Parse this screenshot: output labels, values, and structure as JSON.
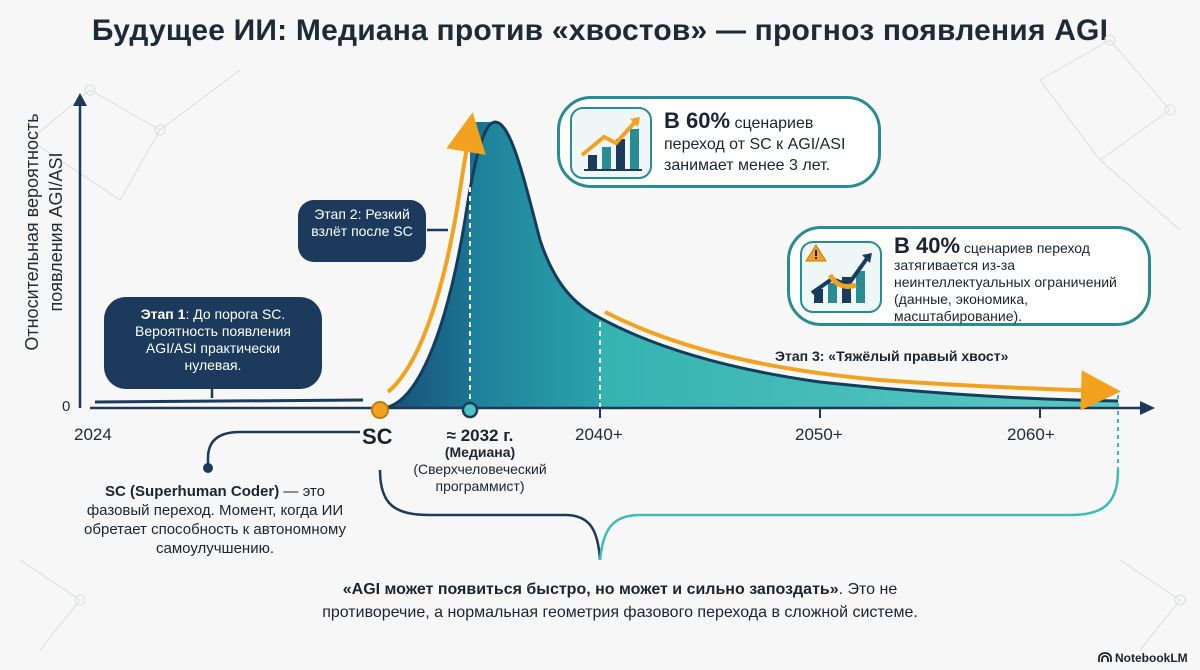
{
  "title": "Будущее ИИ: Медиана против «хвостов» — прогноз появления AGI",
  "y_axis": {
    "line1": "Относительная вероятность",
    "line2": "появления AGI/ASI",
    "zero_label": "0"
  },
  "x_axis": {
    "ticks": [
      "2024",
      "2040+",
      "2050+",
      "2060+"
    ]
  },
  "stage1": {
    "label": "Этап 1",
    "text": ": До порога SC. Вероятность появления AGI/ASI практически нулевая."
  },
  "stage2": {
    "text": "Этап 2: Резкий взлёт после SC"
  },
  "stage3": {
    "text": "Этап 3: «Тяжёлый правый хвост»"
  },
  "callout_60": {
    "percent": "В 60%",
    "rest": " сценариев переход от SC к AGI/ASI занимает менее 3 лет.",
    "icon": "growth-chart-icon"
  },
  "callout_40": {
    "percent": "В 40%",
    "rest": " сценариев переход затягивается из-за неинтеллектуальных ограничений (данные, экономика, масштабирование).",
    "icon": "warning-chart-icon"
  },
  "sc_marker": {
    "label": "SC",
    "desc_bold": "SC (Superhuman Coder)",
    "desc_rest": " — это фазовый переход. Момент, когда ИИ обретает способность к автономному самоулучшению."
  },
  "median": {
    "year": "≈ 2032 г.",
    "label": "(Медиана)",
    "note": "(Сверхчеловеческий программист)"
  },
  "quote": {
    "bold": "«AGI может появиться быстро, но может и сильно запоздать»",
    "rest": ". Это не противоречие, а нормальная геометрия фазового перехода в сложной системе."
  },
  "brand": "NotebookLM",
  "colors": {
    "navy": "#1c3a5b",
    "teal_dark": "#176c86",
    "teal_light": "#3cbcb8",
    "orange": "#f3a21f",
    "callout_border": "#2a8c93"
  }
}
